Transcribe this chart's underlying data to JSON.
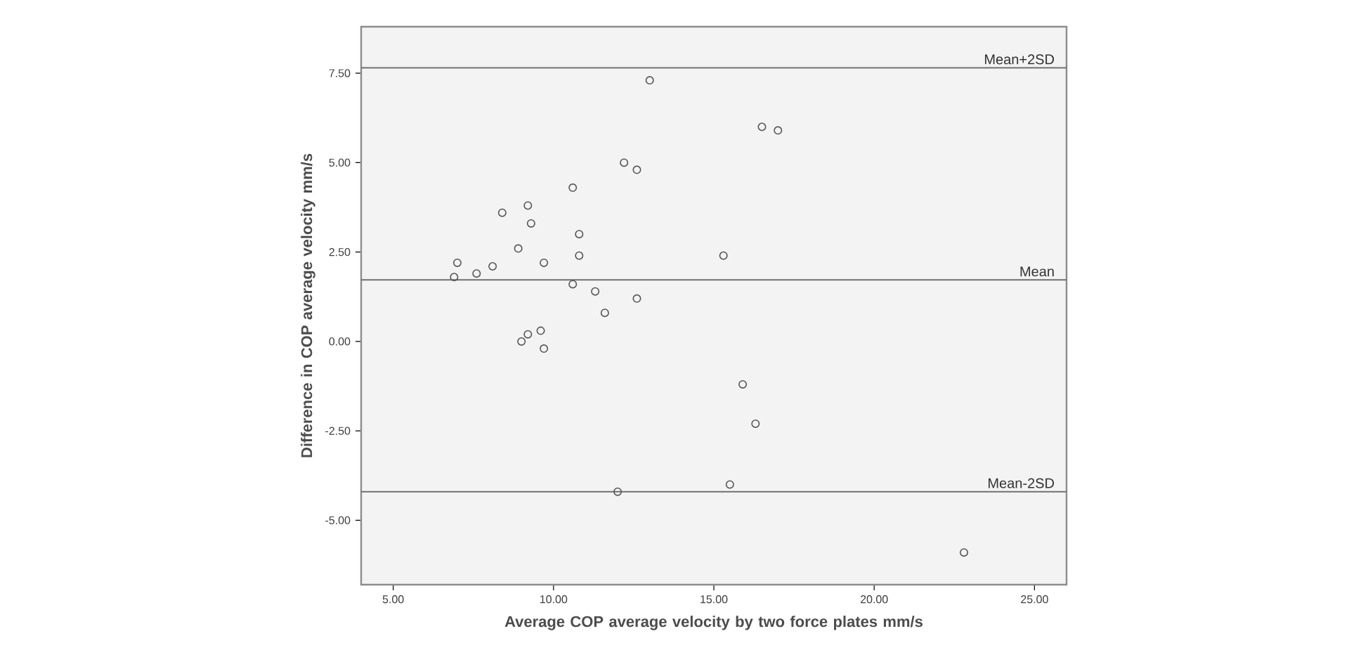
{
  "chart_data": {
    "type": "scatter",
    "xlabel": "Average COP average velocity by two force plates mm/s",
    "ylabel": "Difference in COP average velocity mm/s",
    "x": [
      6.9,
      7.0,
      7.6,
      8.1,
      8.4,
      8.9,
      9.0,
      9.2,
      9.2,
      9.3,
      9.6,
      9.7,
      9.7,
      10.6,
      10.6,
      10.8,
      10.8,
      11.3,
      11.6,
      12.0,
      12.2,
      12.6,
      12.6,
      13.0,
      15.3,
      15.5,
      15.9,
      16.3,
      16.5,
      17.0,
      22.8
    ],
    "values": [
      1.8,
      2.2,
      1.9,
      2.1,
      3.6,
      2.6,
      0.0,
      0.2,
      3.8,
      3.3,
      0.3,
      -0.2,
      2.2,
      4.3,
      1.6,
      3.0,
      2.4,
      1.4,
      0.8,
      -4.2,
      5.0,
      4.8,
      1.2,
      7.3,
      2.4,
      -4.0,
      -1.2,
      -2.3,
      6.0,
      5.9,
      -5.9
    ],
    "color": "#555555",
    "marker": "circle",
    "xlim": [
      4,
      26
    ],
    "ylim": [
      -6.8,
      8.8
    ],
    "xticks": [
      {
        "value": 5,
        "label": "5.00"
      },
      {
        "value": 10,
        "label": "10.00"
      },
      {
        "value": 15,
        "label": "15.00"
      },
      {
        "value": 20,
        "label": "20.00"
      },
      {
        "value": 25,
        "label": "25.00"
      }
    ],
    "yticks": [
      {
        "value": -5,
        "label": "-5.00"
      },
      {
        "value": -2.5,
        "label": "-2.50"
      },
      {
        "value": 0,
        "label": "0.00"
      },
      {
        "value": 2.5,
        "label": "2.50"
      },
      {
        "value": 5,
        "label": "5.00"
      },
      {
        "value": 7.5,
        "label": "7.50"
      }
    ],
    "ref_lines": [
      {
        "axis": "y",
        "value": 7.65,
        "label": "Mean+2SD",
        "color": "#707070"
      },
      {
        "axis": "y",
        "value": 1.72,
        "label": "Mean",
        "color": "#707070"
      },
      {
        "axis": "y",
        "value": -4.2,
        "label": "Mean-2SD",
        "color": "#707070"
      }
    ]
  }
}
